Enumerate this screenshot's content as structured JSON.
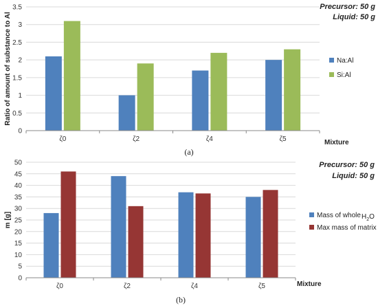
{
  "chart_data": [
    {
      "type": "bar",
      "panel_label": "(a)",
      "categories": [
        "ζ0",
        "ζ2",
        "ζ4",
        "ζ5"
      ],
      "series": [
        {
          "name": "Na:Al",
          "values": [
            2.1,
            1.0,
            1.7,
            2.0
          ],
          "color": "#4f81bd"
        },
        {
          "name": "Si:Al",
          "values": [
            3.1,
            1.9,
            2.2,
            2.3
          ],
          "color": "#9bbb59"
        }
      ],
      "xlabel": "Mixture",
      "ylabel": "Ratio of amount of substance to Al",
      "ylim": [
        0,
        3.5
      ],
      "yticks": [
        "0",
        "0.5",
        "1",
        "1.5",
        "2",
        "2.5",
        "3",
        "3.5"
      ],
      "grid": true,
      "legend_position": "right",
      "annotations": [
        "Precursor: 50 g",
        "Liquid: 50 g"
      ]
    },
    {
      "type": "bar",
      "panel_label": "(b)",
      "categories": [
        "ζ0",
        "ζ2",
        "ζ4",
        "ζ5"
      ],
      "series": [
        {
          "name": "Mass of whole",
          "name_suffix": "H2O",
          "values": [
            28,
            44,
            37,
            35
          ],
          "color": "#4f81bd"
        },
        {
          "name": "Max mass of matrix",
          "values": [
            46,
            31,
            36.5,
            38
          ],
          "color": "#963634"
        }
      ],
      "xlabel": "Mixture",
      "ylabel": "m [g]",
      "ylim": [
        0,
        50
      ],
      "yticks": [
        "0",
        "5",
        "10",
        "15",
        "20",
        "25",
        "30",
        "35",
        "40",
        "45",
        "50"
      ],
      "grid": true,
      "legend_position": "right",
      "annotations": [
        "Precursor: 50 g",
        "Liquid: 50 g"
      ]
    }
  ]
}
